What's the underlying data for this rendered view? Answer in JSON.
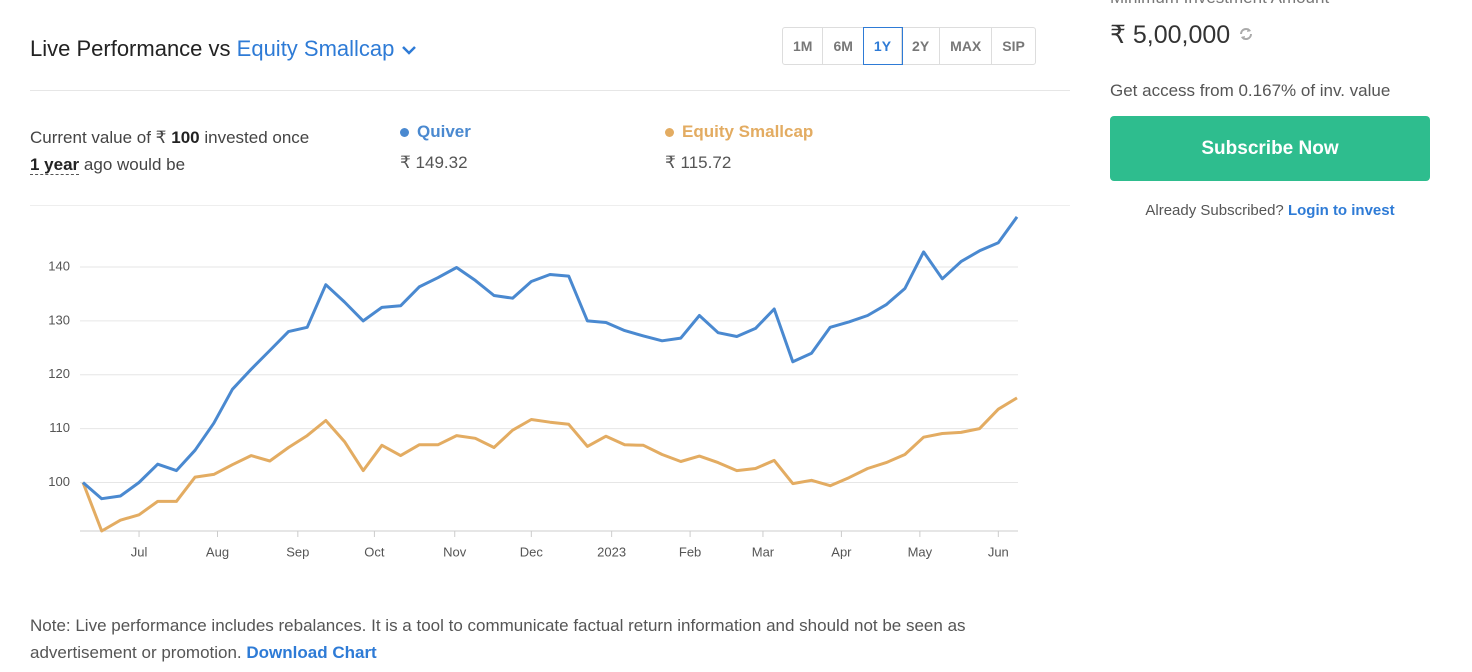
{
  "header": {
    "title": "Live Performance vs",
    "benchmark": "Equity Smallcap",
    "periods": [
      "1M",
      "6M",
      "1Y",
      "2Y",
      "MAX",
      "SIP"
    ],
    "active_period": 2
  },
  "summary": {
    "text_1": "Current value of ₹",
    "amount": "100",
    "text_2": "invested once",
    "period": "1 year",
    "text_3": "ago would be",
    "legend_values": [
      "₹ 149.32",
      "₹ 115.72"
    ]
  },
  "chart_data": {
    "type": "line",
    "series": [
      {
        "name": "Quiver",
        "color": "#4a89d0",
        "values": [
          100,
          97,
          97.5,
          100,
          103.4,
          102.2,
          106,
          111,
          117.3,
          121,
          124.5,
          128,
          128.8,
          136.7,
          133.5,
          130,
          132.5,
          132.8,
          136.3,
          138,
          139.9,
          137.5,
          134.7,
          134.2,
          137.3,
          138.6,
          138.3,
          130,
          129.7,
          128.2,
          127.2,
          126.3,
          126.8,
          131,
          127.8,
          127.1,
          128.6,
          132.2,
          122.4,
          124,
          128.8,
          129.8,
          131,
          133,
          136,
          142.8,
          137.8,
          141,
          143,
          144.5,
          149.3
        ]
      },
      {
        "name": "Equity Smallcap",
        "color": "#e3ac62",
        "values": [
          100,
          91,
          93,
          94,
          96.5,
          96.5,
          101,
          101.5,
          103.3,
          105,
          104,
          106.5,
          108.7,
          111.5,
          107.6,
          102.2,
          106.9,
          105,
          107,
          107,
          108.7,
          108.2,
          106.5,
          109.7,
          111.7,
          111.2,
          110.8,
          106.7,
          108.6,
          107,
          106.9,
          105.2,
          103.9,
          104.9,
          103.7,
          102.2,
          102.6,
          104.1,
          99.8,
          100.4,
          99.4,
          100.9,
          102.6,
          103.7,
          105.2,
          108.4,
          109.1,
          109.3,
          110,
          113.6,
          115.7
        ]
      }
    ],
    "xlim": [
      0,
      50
    ],
    "xticks": [
      {
        "value": 3,
        "label": "Jul"
      },
      {
        "value": 7.2,
        "label": "Aug"
      },
      {
        "value": 11.5,
        "label": "Sep"
      },
      {
        "value": 15.6,
        "label": "Oct"
      },
      {
        "value": 19.9,
        "label": "Nov"
      },
      {
        "value": 24,
        "label": "Dec"
      },
      {
        "value": 28.3,
        "label": "2023"
      },
      {
        "value": 32.5,
        "label": "Feb"
      },
      {
        "value": 36.4,
        "label": "Mar"
      },
      {
        "value": 40.6,
        "label": "Apr"
      },
      {
        "value": 44.8,
        "label": "May"
      },
      {
        "value": 49,
        "label": "Jun"
      }
    ],
    "ylim": [
      91,
      151.5
    ],
    "yticks": [
      100,
      110,
      120,
      130,
      140
    ],
    "grid": true
  },
  "note": {
    "text": "Note: Live performance includes rebalances. It is a tool to communicate factual return information and should not be seen as advertisement or promotion.",
    "link": "Download Chart"
  },
  "sidebar": {
    "min_label": "Minimum Investment Amount",
    "min_amount": "₹ 5,00,000",
    "access": "Get access from 0.167% of inv. value",
    "button": "Subscribe Now",
    "already": "Already Subscribed?",
    "login": "Login to invest"
  }
}
